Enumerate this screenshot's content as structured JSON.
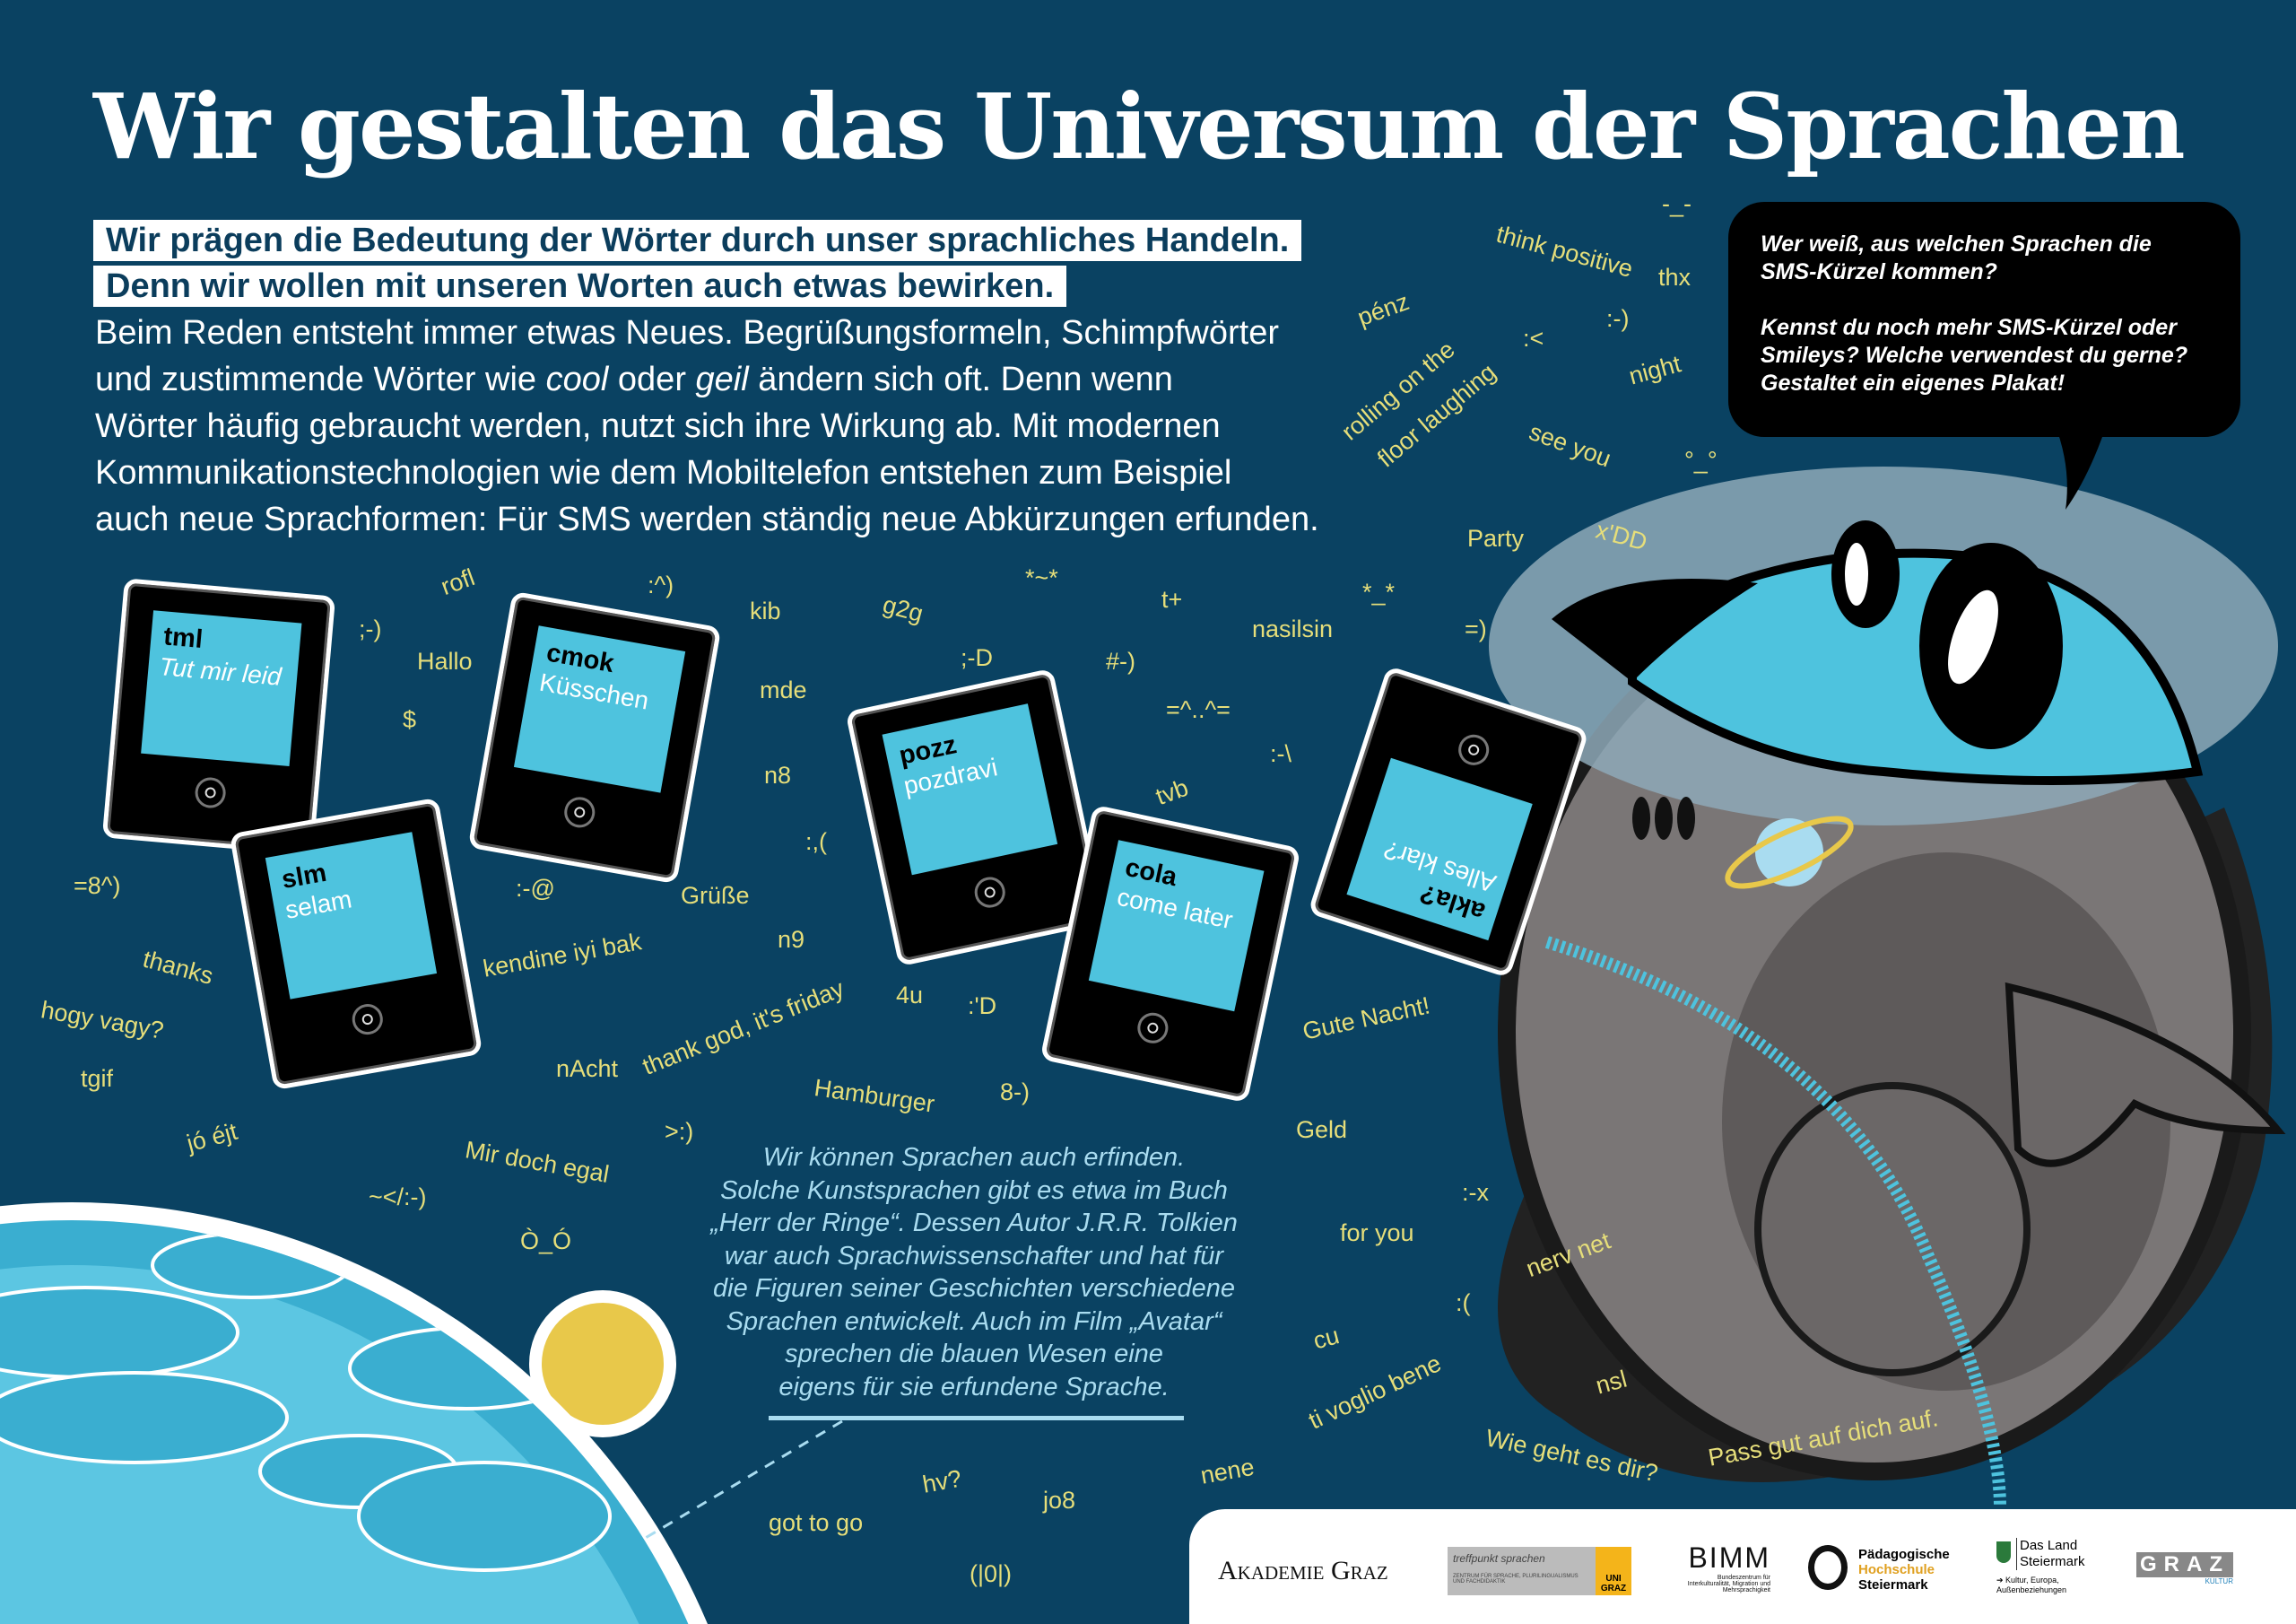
{
  "title": "Wir gestalten das Universum der Sprachen",
  "highlights": [
    "Wir prägen die Bedeutung der Wörter durch unser sprachliches Handeln.",
    "Denn wir wollen mit unseren Worten auch etwas bewirken."
  ],
  "intro": {
    "line1": "Beim Reden entsteht immer etwas Neues. Begrüßungsformeln, Schimpfwörter",
    "line2_a": "und zustimmende Wörter wie ",
    "line2_cool": "cool",
    "line2_b": " oder ",
    "line2_geil": "geil",
    "line2_c": " ändern sich oft. Denn wenn",
    "line3": "Wörter häufig gebraucht werden, nutzt sich ihre Wirkung ab. Mit modernen",
    "line4": "Kommunikationstechnologien wie dem Mobiltelefon entstehen zum Beispiel",
    "line5": "auch neue Sprachformen: Für SMS werden ständig neue Abkürzungen erfunden."
  },
  "bubble": {
    "p1": "Wer weiß, aus welchen Sprachen die SMS-Kürzel kommen?",
    "p2": "Kennst du noch mehr SMS-Kürzel oder Smileys? Welche verwendest du gerne? Gestaltet ein eigenes Plakat!"
  },
  "phones": [
    {
      "abbr": "tml",
      "meaning": "Tut mir leid"
    },
    {
      "abbr": "slm",
      "meaning": "selam"
    },
    {
      "abbr": "cmok",
      "meaning": "Küsschen"
    },
    {
      "abbr": "pozz",
      "meaning": "pozdravi"
    },
    {
      "abbr": "cola",
      "meaning": "come later"
    },
    {
      "abbr": "akla?",
      "meaning": "Alles klar?"
    }
  ],
  "story": [
    "Wir können Sprachen auch erfinden.",
    "Solche Kunstsprachen gibt es etwa im Buch",
    "„Herr der Ringe“. Dessen Autor J.R.R. Tolkien",
    "war auch Sprachwissenschafter und hat für",
    "die Figuren seiner Geschichten verschiedene",
    "Sprachen entwickelt. Auch im Film „Avatar“",
    "sprechen die blauen Wesen eine",
    "eigens für sie erfundene Sprache."
  ],
  "words": [
    "think positive",
    "-_-",
    "thx",
    "pénz",
    ":-)",
    ":<",
    "rolling on the",
    "floor laughing",
    "night",
    "see you",
    "°_°",
    "Party",
    "x'DD",
    "rofl",
    ":^)",
    "*~*",
    "t+",
    "*_*",
    ";-)",
    "Hallo",
    "kib",
    "g2g",
    "nasilsin",
    "=)",
    ";-D",
    "#-)",
    "$",
    "mde",
    "=^..^=",
    ":-\\",
    "tvb",
    "n8",
    ":,(",
    "=8^)",
    ":-@",
    "Grüße",
    "thanks",
    "kendine iyi bak",
    "n9",
    "4u",
    ":'D",
    "hogy vagy?",
    "Gute Nacht!",
    "thank god, it's friday",
    "nAcht",
    "tgif",
    "Hamburger",
    "8-)",
    "jó éjt",
    ">:)",
    "Geld",
    "Mir doch egal",
    ":-x",
    "~</:-)",
    "Ò_Ó",
    "for you",
    "nerv net",
    ":(",
    "cu",
    "nsl",
    "ti voglio bene",
    "Wie geht es dir?",
    "Pass gut auf dich auf.",
    "nene",
    "hv?",
    "jo8",
    "got to go",
    "(|0|)"
  ],
  "footer": {
    "logos": [
      {
        "name": "Akademie Graz",
        "text": "Akademie Graz"
      },
      {
        "name": "treffpunkt sprachen",
        "text": "treffpunkt sprachen",
        "sub": "ZENTRUM FÜR SPRACHE, PLURILINGUALISMUS UND FACHDIDAKTIK",
        "uni": "UNI GRAZ"
      },
      {
        "name": "BIMM",
        "text": "BIMM",
        "sub": "Bundeszentrum für Interkulturalität, Migration und Mehrsprachigkeit"
      },
      {
        "name": "Pädagogische Hochschule Steiermark",
        "l1": "Pädagogische",
        "l2": "Hochschule",
        "l3": "Steiermark"
      },
      {
        "name": "Das Land Steiermark",
        "l1": "Das Land",
        "l2": "Steiermark",
        "sub": "➔ Kultur, Europa, Außenbeziehungen"
      },
      {
        "name": "Graz Kultur",
        "text": "GRAZ",
        "sub": "KULTUR"
      }
    ]
  },
  "colors": {
    "background": "#0a4262",
    "word": "#e6de7a",
    "screen": "#4ec3de",
    "story": "#a9dcf0"
  }
}
